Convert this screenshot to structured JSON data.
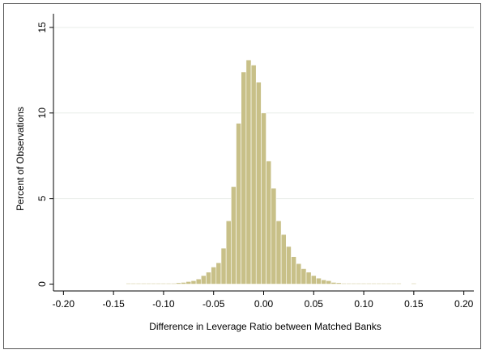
{
  "chart_data": {
    "type": "bar",
    "title": "",
    "xlabel": "Difference in Leverage Ratio between Matched Banks",
    "ylabel": "Percent of Observations",
    "xlim": [
      -0.21,
      0.21
    ],
    "ylim": [
      -0.4,
      15.8
    ],
    "xticks": [
      -0.2,
      -0.15,
      -0.1,
      -0.05,
      0.0,
      0.05,
      0.1,
      0.15,
      0.2
    ],
    "xtick_labels": [
      "-0.20",
      "-0.15",
      "-0.10",
      "-0.05",
      "0.00",
      "0.05",
      "0.10",
      "0.15",
      "0.20"
    ],
    "yticks": [
      0,
      5,
      10,
      15
    ],
    "ytick_labels": [
      "0",
      "5",
      "10",
      "15"
    ],
    "grid": true,
    "bar_color": "#c8c088",
    "bin_width": 0.005,
    "bins": [
      {
        "x": -0.135,
        "value": 0.05
      },
      {
        "x": -0.13,
        "value": 0.05
      },
      {
        "x": -0.125,
        "value": 0.05
      },
      {
        "x": -0.12,
        "value": 0.05
      },
      {
        "x": -0.115,
        "value": 0.05
      },
      {
        "x": -0.11,
        "value": 0.05
      },
      {
        "x": -0.105,
        "value": 0.05
      },
      {
        "x": -0.1,
        "value": 0.05
      },
      {
        "x": -0.095,
        "value": 0.05
      },
      {
        "x": -0.09,
        "value": 0.05
      },
      {
        "x": -0.085,
        "value": 0.08
      },
      {
        "x": -0.08,
        "value": 0.1
      },
      {
        "x": -0.075,
        "value": 0.15
      },
      {
        "x": -0.07,
        "value": 0.2
      },
      {
        "x": -0.065,
        "value": 0.3
      },
      {
        "x": -0.06,
        "value": 0.5
      },
      {
        "x": -0.055,
        "value": 0.7
      },
      {
        "x": -0.05,
        "value": 1.0
      },
      {
        "x": -0.045,
        "value": 1.25
      },
      {
        "x": -0.04,
        "value": 2.1
      },
      {
        "x": -0.035,
        "value": 3.7
      },
      {
        "x": -0.03,
        "value": 5.7
      },
      {
        "x": -0.025,
        "value": 9.4
      },
      {
        "x": -0.02,
        "value": 12.4
      },
      {
        "x": -0.015,
        "value": 13.1
      },
      {
        "x": -0.01,
        "value": 12.8
      },
      {
        "x": -0.005,
        "value": 11.8
      },
      {
        "x": 0.0,
        "value": 10.0
      },
      {
        "x": 0.005,
        "value": 7.2
      },
      {
        "x": 0.01,
        "value": 5.6
      },
      {
        "x": 0.015,
        "value": 3.7
      },
      {
        "x": 0.02,
        "value": 2.9
      },
      {
        "x": 0.025,
        "value": 2.2
      },
      {
        "x": 0.03,
        "value": 1.6
      },
      {
        "x": 0.035,
        "value": 1.2
      },
      {
        "x": 0.04,
        "value": 0.9
      },
      {
        "x": 0.045,
        "value": 0.7
      },
      {
        "x": 0.05,
        "value": 0.5
      },
      {
        "x": 0.055,
        "value": 0.35
      },
      {
        "x": 0.06,
        "value": 0.25
      },
      {
        "x": 0.065,
        "value": 0.2
      },
      {
        "x": 0.07,
        "value": 0.1
      },
      {
        "x": 0.075,
        "value": 0.08
      },
      {
        "x": 0.08,
        "value": 0.05
      },
      {
        "x": 0.085,
        "value": 0.05
      },
      {
        "x": 0.09,
        "value": 0.05
      },
      {
        "x": 0.095,
        "value": 0.05
      },
      {
        "x": 0.1,
        "value": 0.05
      },
      {
        "x": 0.105,
        "value": 0.05
      },
      {
        "x": 0.11,
        "value": 0.05
      },
      {
        "x": 0.115,
        "value": 0.05
      },
      {
        "x": 0.12,
        "value": 0.05
      },
      {
        "x": 0.125,
        "value": 0.05
      },
      {
        "x": 0.13,
        "value": 0.05
      },
      {
        "x": 0.135,
        "value": 0.05
      },
      {
        "x": 0.15,
        "value": 0.05
      }
    ]
  }
}
